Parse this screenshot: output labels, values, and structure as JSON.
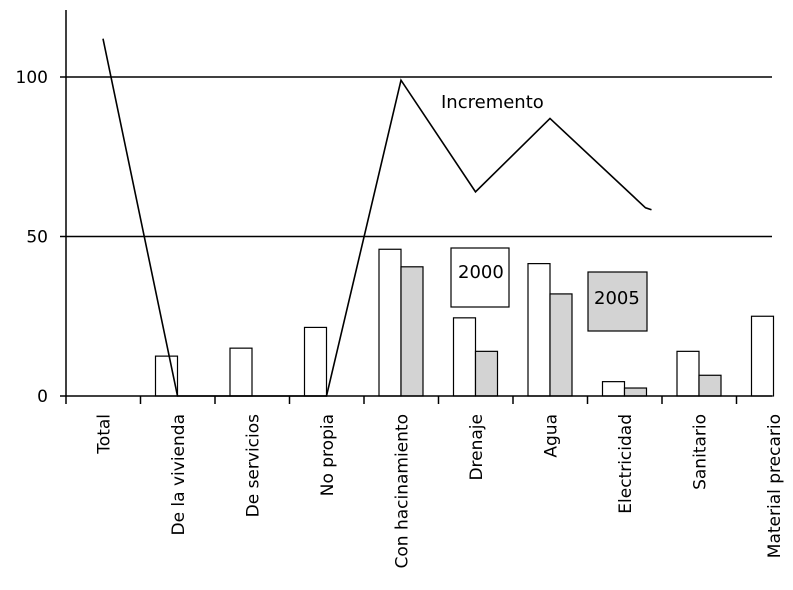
{
  "chart_data": {
    "type": "bar",
    "categories": [
      "Total",
      "De la vivienda",
      "De servicios",
      "No propia",
      "Con hacinamiento",
      "Drenaje",
      "Agua",
      "Electricidad",
      "Sanitario",
      "Material precario"
    ],
    "series": [
      {
        "name": "2000",
        "values": [
          null,
          12.5,
          15,
          21.5,
          46,
          24.5,
          41.5,
          4.5,
          14,
          25
        ],
        "color": "#ffffff"
      },
      {
        "name": "2005",
        "values": [
          null,
          0,
          0,
          0,
          40.5,
          14,
          32,
          2.5,
          6.5,
          null
        ],
        "color": "#d3d3d3"
      },
      {
        "name": "Incremento",
        "type": "line",
        "values": [
          112,
          0,
          null,
          0,
          99,
          64,
          87,
          59,
          null,
          null
        ]
      }
    ],
    "ylim": [
      0,
      120
    ],
    "yticks": [
      0,
      50,
      100
    ],
    "gridlines": [
      50,
      100
    ],
    "annotations": {
      "line_label": "Incremento",
      "box_2000": "2000",
      "box_2005": "2005"
    },
    "colors": {
      "bar_2000": "#ffffff",
      "bar_2005": "#d3d3d3",
      "stroke": "#000000"
    }
  }
}
